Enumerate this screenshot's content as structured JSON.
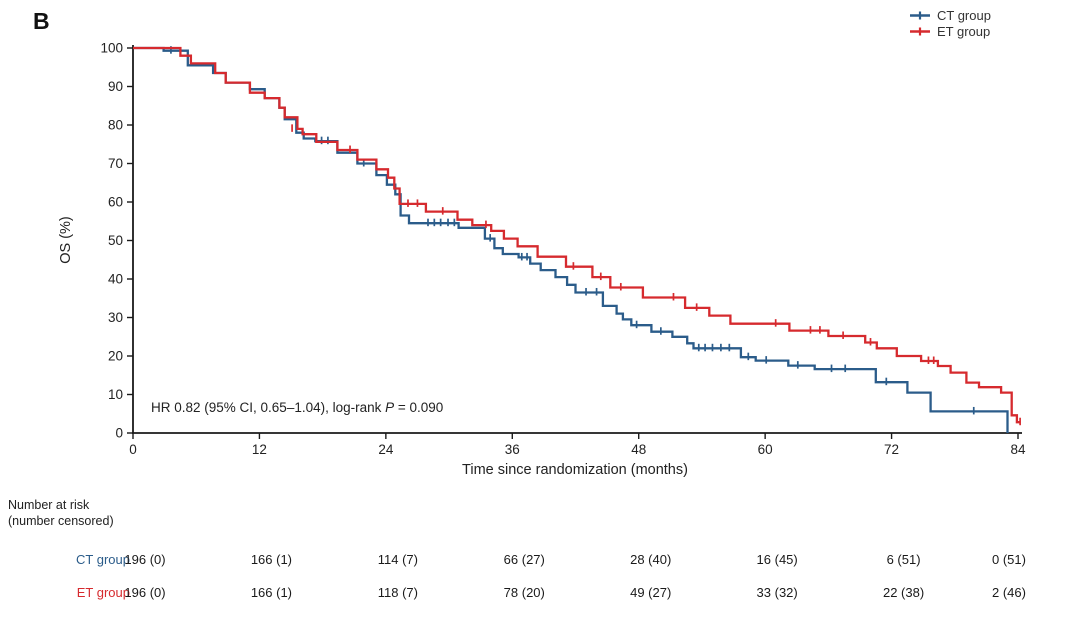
{
  "figure": {
    "panel_label": "B",
    "annotation": {
      "prefix": "HR 0.82 (95% CI, 0.65–1.04), log-rank ",
      "p_symbol": "P",
      "suffix": " = 0.090"
    }
  },
  "chart_data": {
    "type": "line",
    "subtype": "kaplan-meier-step",
    "title": "",
    "xlabel": "Time since randomization (months)",
    "ylabel": "OS (%)",
    "xlim": [
      0,
      84
    ],
    "ylim": [
      0,
      100
    ],
    "x_ticks": [
      0,
      12,
      24,
      36,
      48,
      60,
      72,
      84
    ],
    "y_ticks": [
      0,
      10,
      20,
      30,
      40,
      50,
      60,
      70,
      80,
      90,
      100
    ],
    "grid": false,
    "legend_position": "top-right",
    "axis_color": "#1a1a1a",
    "series": [
      {
        "name": "CT group",
        "color": "#2b5c8a",
        "steps": [
          [
            0,
            100
          ],
          [
            2.9,
            99.3
          ],
          [
            5.2,
            95.5
          ],
          [
            7.6,
            93.5
          ],
          [
            8.8,
            91
          ],
          [
            11.1,
            89.3
          ],
          [
            12.5,
            87
          ],
          [
            13.9,
            84.5
          ],
          [
            14.4,
            81.5
          ],
          [
            15.5,
            78
          ],
          [
            16.2,
            76.5
          ],
          [
            17.3,
            75.8
          ],
          [
            19.4,
            72.8
          ],
          [
            21.3,
            70
          ],
          [
            23.1,
            67
          ],
          [
            24.1,
            64.5
          ],
          [
            24.9,
            62
          ],
          [
            25.4,
            56.5
          ],
          [
            26.2,
            54.5
          ],
          [
            30.9,
            53.3
          ],
          [
            33.4,
            50.5
          ],
          [
            34.3,
            48
          ],
          [
            35.1,
            46.5
          ],
          [
            36.6,
            45.6
          ],
          [
            37.7,
            44
          ],
          [
            38.7,
            42.3
          ],
          [
            40.1,
            40.5
          ],
          [
            41.2,
            38.5
          ],
          [
            42,
            36.5
          ],
          [
            44.6,
            33
          ],
          [
            45.9,
            31
          ],
          [
            46.5,
            29.5
          ],
          [
            47.3,
            28
          ],
          [
            49.2,
            26.3
          ],
          [
            51.2,
            25
          ],
          [
            52.6,
            23.3
          ],
          [
            53.2,
            22
          ],
          [
            57.7,
            19.7
          ],
          [
            59.1,
            18.8
          ],
          [
            62.2,
            17.5
          ],
          [
            64.7,
            16.6
          ],
          [
            70.5,
            13.2
          ],
          [
            73.5,
            10.5
          ],
          [
            75.7,
            5.6
          ],
          [
            83,
            0
          ]
        ],
        "censor": [
          [
            3.6,
            99.3
          ],
          [
            17.9,
            75.8
          ],
          [
            18.5,
            75.8
          ],
          [
            21.9,
            70
          ],
          [
            28,
            54.5
          ],
          [
            28.6,
            54.5
          ],
          [
            29.2,
            54.5
          ],
          [
            29.9,
            54.5
          ],
          [
            30.5,
            54.5
          ],
          [
            33.9,
            50.5
          ],
          [
            36.9,
            45.6
          ],
          [
            37.4,
            45.6
          ],
          [
            43,
            36.5
          ],
          [
            44,
            36.5
          ],
          [
            47.8,
            28
          ],
          [
            50.1,
            26.3
          ],
          [
            53.7,
            22
          ],
          [
            54.3,
            22
          ],
          [
            55,
            22
          ],
          [
            55.8,
            22
          ],
          [
            56.6,
            22
          ],
          [
            58.4,
            19.7
          ],
          [
            60.1,
            18.8
          ],
          [
            63.1,
            17.5
          ],
          [
            66.3,
            16.6
          ],
          [
            67.6,
            16.6
          ],
          [
            71.5,
            13.2
          ],
          [
            79.8,
            5.6
          ]
        ]
      },
      {
        "name": "ET group",
        "color": "#d62a2e",
        "steps": [
          [
            0,
            100
          ],
          [
            4.5,
            98
          ],
          [
            5.5,
            96
          ],
          [
            7.8,
            93.5
          ],
          [
            8.8,
            91
          ],
          [
            11.1,
            88.4
          ],
          [
            12.5,
            87
          ],
          [
            13.9,
            84.5
          ],
          [
            14.4,
            82
          ],
          [
            15.6,
            79
          ],
          [
            16.1,
            77.6
          ],
          [
            17.4,
            75.6
          ],
          [
            19.4,
            73.5
          ],
          [
            21.3,
            71
          ],
          [
            23.1,
            68.5
          ],
          [
            24.2,
            66.3
          ],
          [
            24.8,
            63.5
          ],
          [
            25.3,
            59.5
          ],
          [
            27.8,
            57.5
          ],
          [
            30.8,
            55.4
          ],
          [
            32.2,
            54
          ],
          [
            34,
            52.5
          ],
          [
            35.2,
            50.5
          ],
          [
            36.5,
            48.5
          ],
          [
            38.4,
            45.8
          ],
          [
            41.1,
            43.2
          ],
          [
            43.6,
            40.5
          ],
          [
            45.3,
            37.8
          ],
          [
            48.4,
            35.2
          ],
          [
            52.4,
            32.5
          ],
          [
            54.7,
            30.5
          ],
          [
            56.7,
            28.4
          ],
          [
            62.3,
            26.6
          ],
          [
            66,
            25.2
          ],
          [
            69.5,
            23.5
          ],
          [
            70.6,
            22
          ],
          [
            72.5,
            20
          ],
          [
            74.8,
            18.7
          ],
          [
            76.4,
            17.4
          ],
          [
            77.6,
            15.7
          ],
          [
            79.1,
            13.1
          ],
          [
            80.3,
            11.9
          ],
          [
            82.4,
            10.5
          ],
          [
            83.4,
            4.6
          ],
          [
            83.9,
            2.8
          ],
          [
            84.2,
            2.8
          ]
        ],
        "censor": [
          [
            15.1,
            79
          ],
          [
            20.6,
            73.5
          ],
          [
            26.1,
            59.5
          ],
          [
            27,
            59.5
          ],
          [
            29.4,
            57.5
          ],
          [
            33.5,
            54
          ],
          [
            41.8,
            43.2
          ],
          [
            44.4,
            40.5
          ],
          [
            46.3,
            37.8
          ],
          [
            51.3,
            35.2
          ],
          [
            53.5,
            32.5
          ],
          [
            61,
            28.4
          ],
          [
            64.3,
            26.6
          ],
          [
            65.2,
            26.6
          ],
          [
            67.4,
            25.2
          ],
          [
            70,
            23.5
          ],
          [
            75.5,
            18.7
          ],
          [
            76,
            18.7
          ],
          [
            84.2,
            2.8
          ]
        ]
      }
    ]
  },
  "risk_table": {
    "header_line1": "Number at risk",
    "header_line2": "(number censored)",
    "time_points": [
      0,
      12,
      24,
      36,
      48,
      60,
      72,
      84
    ],
    "rows": [
      {
        "label": "CT group",
        "color": "#2b5c8a",
        "values": [
          "196 (0)",
          "166 (1)",
          "114 (7)",
          "66 (27)",
          "28 (40)",
          "16 (45)",
          "6 (51)",
          "0 (51)"
        ]
      },
      {
        "label": "ET group",
        "color": "#d62a2e",
        "values": [
          "196 (0)",
          "166 (1)",
          "118 (7)",
          "78 (20)",
          "49 (27)",
          "33 (32)",
          "22 (38)",
          "2 (46)"
        ]
      }
    ]
  }
}
